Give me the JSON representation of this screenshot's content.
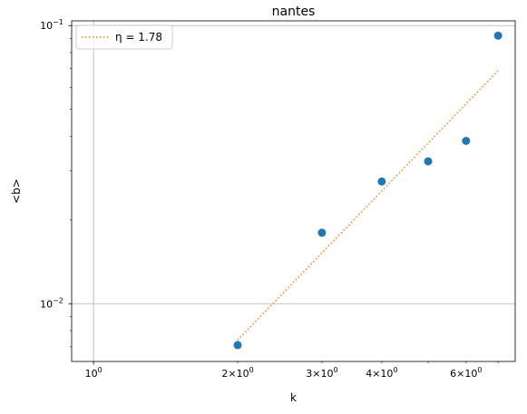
{
  "chart_data": {
    "type": "scatter",
    "title": "nantes",
    "xlabel": "k",
    "ylabel": "<b>",
    "xscale": "log",
    "yscale": "log",
    "xlim": [
      0.9,
      7.6
    ],
    "ylim": [
      0.0062,
      0.104
    ],
    "grid": true,
    "legend_position": "top-left",
    "x_major_ticks": [
      {
        "value": 1,
        "label": "10"
      }
    ],
    "x_minor_ticks": [
      {
        "value": 2,
        "mantissa": "2",
        "label": "10"
      },
      {
        "value": 3,
        "mantissa": "3",
        "label": "10"
      },
      {
        "value": 4,
        "mantissa": "4",
        "label": "10"
      },
      {
        "value": 6,
        "mantissa": "6",
        "label": "10"
      }
    ],
    "x_tick_exponent": "0",
    "y_major_ticks": [
      {
        "value": 0.01,
        "label": "10",
        "exponent": "−2"
      },
      {
        "value": 0.1,
        "label": "10",
        "exponent": "−1"
      }
    ],
    "series": [
      {
        "type": "scatter",
        "color": "#1f77b4",
        "x": [
          2,
          3,
          4,
          5,
          6,
          7
        ],
        "y": [
          0.0071,
          0.018,
          0.0275,
          0.0325,
          0.0385,
          0.092
        ]
      },
      {
        "type": "line",
        "name": "η = 1.78",
        "color": "#ff7f0e",
        "linestyle": "dotted",
        "x": [
          2,
          7
        ],
        "y": [
          0.0074,
          0.0688
        ]
      }
    ],
    "legend": [
      {
        "label": "η = 1.78",
        "color": "#ff7f0e",
        "linestyle": "dotted"
      }
    ]
  }
}
